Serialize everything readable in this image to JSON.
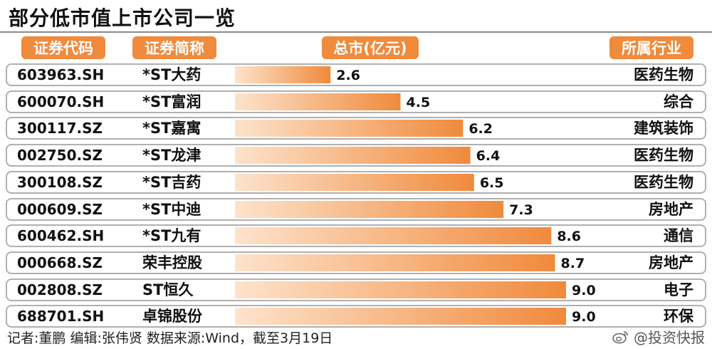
{
  "title": "部分低市值上市公司一览",
  "headers": {
    "code": "证券代码",
    "name": "证券简称",
    "value": "总市(亿元)",
    "industry": "所属行业"
  },
  "colors": {
    "accent": "#f08a3c",
    "bar_light": "#fde3cc"
  },
  "chart_data": {
    "type": "bar",
    "title": "部分低市值上市公司一览",
    "categories": [
      "*ST大药",
      "*ST富润",
      "*ST嘉寓",
      "*ST龙津",
      "*ST吉药",
      "*ST中迪",
      "*ST九有",
      "荣丰控股",
      "ST恒久",
      "卓锦股份"
    ],
    "values": [
      2.6,
      4.5,
      6.2,
      6.4,
      6.5,
      7.3,
      8.6,
      8.7,
      9.0,
      9.0
    ],
    "value_labels": [
      "2.6",
      "4.5",
      "6.2",
      "6.4",
      "6.5",
      "7.3",
      "8.6",
      "8.7",
      "9.0",
      "9.0"
    ],
    "xlim": [
      0,
      9.0
    ],
    "rows": [
      {
        "code": "603963.SH",
        "name": "*ST大药",
        "value": 2.6,
        "label": "2.6",
        "industry": "医药生物"
      },
      {
        "code": "600070.SH",
        "name": "*ST富润",
        "value": 4.5,
        "label": "4.5",
        "industry": "综合"
      },
      {
        "code": "300117.SZ",
        "name": "*ST嘉寓",
        "value": 6.2,
        "label": "6.2",
        "industry": "建筑装饰"
      },
      {
        "code": "002750.SZ",
        "name": "*ST龙津",
        "value": 6.4,
        "label": "6.4",
        "industry": "医药生物"
      },
      {
        "code": "300108.SZ",
        "name": "*ST吉药",
        "value": 6.5,
        "label": "6.5",
        "industry": "医药生物"
      },
      {
        "code": "000609.SZ",
        "name": "*ST中迪",
        "value": 7.3,
        "label": "7.3",
        "industry": "房地产"
      },
      {
        "code": "600462.SH",
        "name": "*ST九有",
        "value": 8.6,
        "label": "8.6",
        "industry": "通信"
      },
      {
        "code": "000668.SZ",
        "name": "荣丰控股",
        "value": 8.7,
        "label": "8.7",
        "industry": "房地产"
      },
      {
        "code": "002808.SZ",
        "name": "ST恒久",
        "value": 9.0,
        "label": "9.0",
        "industry": "电子"
      },
      {
        "code": "688701.SH",
        "name": "卓锦股份",
        "value": 9.0,
        "label": "9.0",
        "industry": "环保"
      }
    ]
  },
  "footer": "记者:董鹏  编辑:张伟贤  数据来源:Wind，截至3月19日",
  "watermark": "@投资快报",
  "watermark_icon": "weibo-icon"
}
